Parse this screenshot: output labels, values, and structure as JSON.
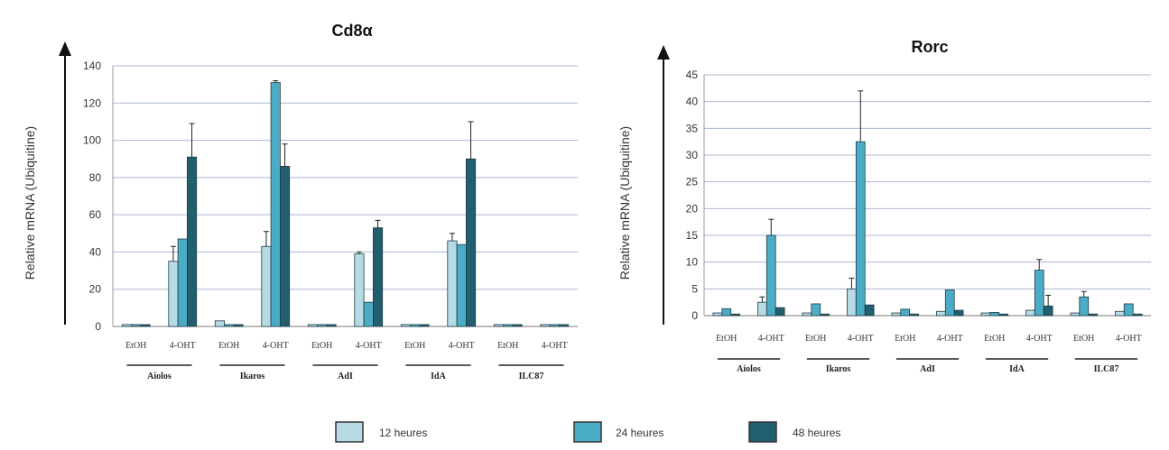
{
  "chart_data": [
    {
      "type": "bar",
      "title": "Cd8α",
      "ylabel": "Relative mRNA (Ubiquitine)",
      "xlabel": "",
      "ylim": [
        0,
        140
      ],
      "yticks": [
        0,
        20,
        40,
        60,
        80,
        100,
        120,
        140
      ],
      "grid": true,
      "categories": [
        "EtOH",
        "4-OHT",
        "EtOH",
        "4-OHT",
        "EtOH",
        "4-OHT",
        "EtOH",
        "4-OHT",
        "EtOH",
        "4-OHT"
      ],
      "groups": [
        "Aiolos",
        "Ikaros",
        "AdI",
        "IdA",
        "ILC87"
      ],
      "series": [
        {
          "name": "12 heures",
          "values": [
            1,
            35,
            3,
            43,
            1,
            39,
            1,
            46,
            1,
            1
          ],
          "errors": [
            0,
            8,
            0,
            8,
            0,
            1,
            0,
            4,
            0,
            0
          ]
        },
        {
          "name": "24 heures",
          "values": [
            1,
            47,
            1,
            131,
            1,
            13,
            1,
            44,
            1,
            1
          ],
          "errors": [
            0,
            0,
            0,
            1,
            0,
            0,
            0,
            0,
            0,
            0
          ]
        },
        {
          "name": "48 heures",
          "values": [
            1,
            91,
            1,
            86,
            1,
            53,
            1,
            90,
            1,
            1
          ],
          "errors": [
            0,
            18,
            0,
            12,
            0,
            4,
            0,
            20,
            0,
            0
          ]
        }
      ]
    },
    {
      "type": "bar",
      "title": "Rorc",
      "ylabel": "Relative mRNA (Ubiquitine)",
      "xlabel": "",
      "ylim": [
        0,
        45
      ],
      "yticks": [
        0,
        5,
        10,
        15,
        20,
        25,
        30,
        35,
        40,
        45
      ],
      "grid": true,
      "categories": [
        "EtOH",
        "4-OHT",
        "EtOH",
        "4-OHT",
        "EtOH",
        "4-OHT",
        "EtOH",
        "4-OHT",
        "EtOH",
        "4-OHT"
      ],
      "groups": [
        "Aiolos",
        "Ikaros",
        "AdI",
        "IdA",
        "ILC87"
      ],
      "series": [
        {
          "name": "12 heures",
          "values": [
            0.5,
            2.5,
            0.5,
            5,
            0.5,
            0.8,
            0.5,
            1,
            0.5,
            0.8
          ],
          "errors": [
            0,
            1,
            0,
            2,
            0,
            0,
            0,
            0,
            0,
            0
          ]
        },
        {
          "name": "24 heures",
          "values": [
            1.3,
            15,
            2.2,
            32.5,
            1.2,
            4.8,
            0.6,
            8.5,
            3.5,
            2.2
          ],
          "errors": [
            0,
            3,
            0,
            9.5,
            0,
            0,
            0,
            2,
            1,
            0
          ]
        },
        {
          "name": "48 heures",
          "values": [
            0.3,
            1.5,
            0.3,
            2,
            0.3,
            1,
            0.3,
            1.8,
            0.3,
            0.3
          ],
          "errors": [
            0,
            0,
            0,
            0,
            0,
            0,
            0,
            2,
            0,
            0
          ]
        }
      ]
    }
  ],
  "legend": [
    {
      "label": "12 heures",
      "color": "#b7dbe5"
    },
    {
      "label": "24 heures",
      "color": "#4bacc6"
    },
    {
      "label": "48 heures",
      "color": "#215e6e"
    }
  ]
}
